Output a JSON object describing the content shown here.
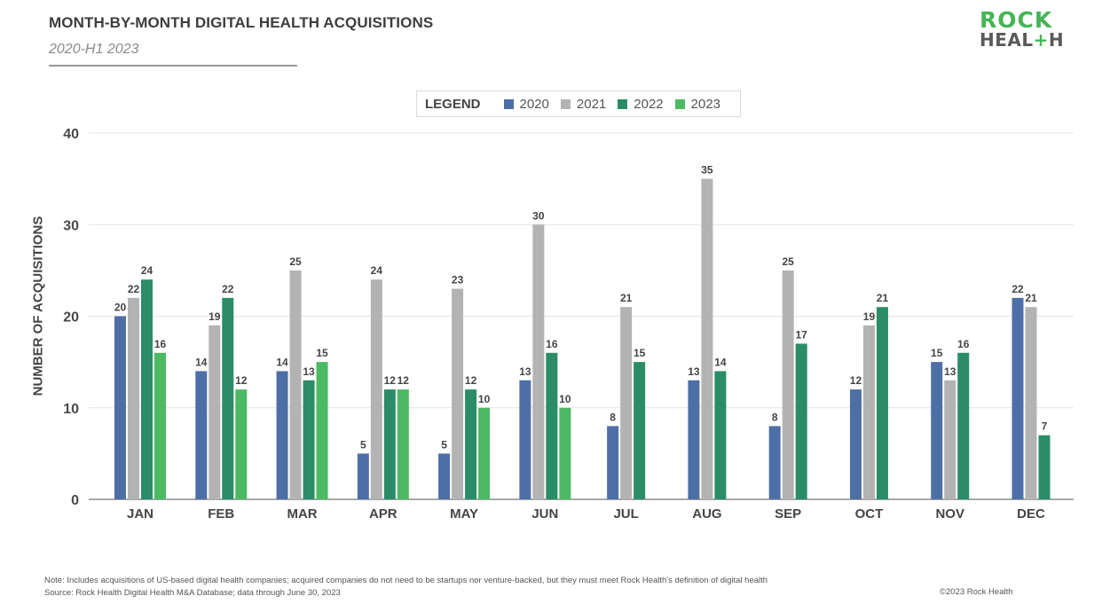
{
  "header": {
    "title": "MONTH-BY-MONTH DIGITAL HEALTH ACQUISITIONS",
    "subtitle": "2020-H1 2023"
  },
  "logo": {
    "line1": "ROCK",
    "line2_a": "HEAL",
    "line2_plus": "+",
    "line2_b": "H"
  },
  "legend": {
    "title": "LEGEND"
  },
  "footer": {
    "note": "Note: Includes acquisitions of US-based digital health companies; acquired companies do not need to be startups nor venture-backed, but they must meet Rock Health's definition of digital health",
    "source": "Source: Rock Health Digital Health M&A Database; data through June 30, 2023",
    "copyright": "©2023 Rock Health"
  },
  "chart_data": {
    "type": "bar",
    "title": "MONTH-BY-MONTH DIGITAL HEALTH ACQUISITIONS",
    "subtitle": "2020-H1 2023",
    "xlabel": "",
    "ylabel": "NUMBER OF ACQUISITIONS",
    "ylim": [
      0,
      40
    ],
    "yticks": [
      0,
      10,
      20,
      30,
      40
    ],
    "grid": true,
    "legend_position": "top-center",
    "categories": [
      "JAN",
      "FEB",
      "MAR",
      "APR",
      "MAY",
      "JUN",
      "JUL",
      "AUG",
      "SEP",
      "OCT",
      "NOV",
      "DEC"
    ],
    "series": [
      {
        "name": "2020",
        "color": "#4e6fa6",
        "values": [
          20,
          14,
          14,
          5,
          5,
          13,
          8,
          13,
          8,
          12,
          15,
          22
        ]
      },
      {
        "name": "2021",
        "color": "#b3b3b3",
        "values": [
          22,
          19,
          25,
          24,
          23,
          30,
          21,
          35,
          25,
          19,
          13,
          21
        ]
      },
      {
        "name": "2022",
        "color": "#2a8d68",
        "values": [
          24,
          22,
          13,
          12,
          12,
          16,
          15,
          14,
          17,
          21,
          16,
          7
        ]
      },
      {
        "name": "2023",
        "color": "#4cb963",
        "values": [
          16,
          12,
          15,
          12,
          10,
          10,
          null,
          null,
          null,
          null,
          null,
          null
        ]
      }
    ]
  }
}
